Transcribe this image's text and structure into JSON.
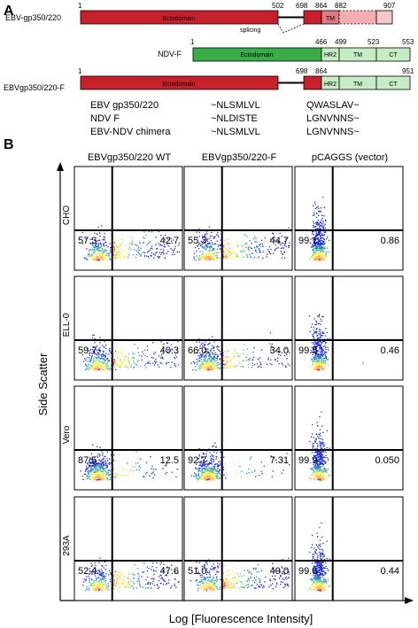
{
  "panel_a": {
    "letter": "A",
    "constructs": [
      {
        "name": "EBV-gp350/220",
        "numbers": [
          "1",
          "502",
          "698",
          "864",
          "882",
          "907"
        ],
        "domains": {
          "ecto": "Ectodomain",
          "tm": "TM"
        },
        "splicing_label": "splicing"
      },
      {
        "name": "NDV-F",
        "numbers": [
          "1",
          "466",
          "499",
          "523",
          "553"
        ],
        "domains": {
          "ecto": "Ectodomain",
          "hr2": "HR2",
          "tm": "TM",
          "ct": "CT"
        }
      },
      {
        "name": "EBVgp350/220-F",
        "numbers": [
          "1",
          "698",
          "864",
          "951"
        ],
        "domains": {
          "ecto": "Ectodomain",
          "hr2": "HR2",
          "tm": "TM",
          "ct": "CT"
        }
      }
    ],
    "sequences": [
      {
        "name": "EBV gp350/220",
        "seq1": "~NLSMLVL",
        "seq2": "QWASLAV~"
      },
      {
        "name": "NDV F",
        "seq1": "~NLDISTE",
        "seq2": "LGNVNNS~"
      },
      {
        "name": "EBV-NDV chimera",
        "seq1": "~NLSMLVL",
        "seq2": "LGNVNNS~"
      }
    ]
  },
  "panel_b": {
    "letter": "B",
    "columns": [
      "EBVgp350/220 WT",
      "EBVgp350/220-F",
      "pCAGGS (vector)"
    ],
    "rows": [
      "CHO",
      "ELL-0",
      "Vero",
      "293A"
    ],
    "y_axis_label": "Side Scatter",
    "x_axis_label": "Log [Fluorescence Intensity]",
    "values": [
      [
        [
          "57.3",
          "42.7"
        ],
        [
          "55.3",
          "44.7"
        ],
        [
          "99.1",
          "0.86"
        ]
      ],
      [
        [
          "59.7",
          "40.3"
        ],
        [
          "66.0",
          "34.0"
        ],
        [
          "99.5",
          "0.46"
        ]
      ],
      [
        [
          "87.5",
          "12.5"
        ],
        [
          "92.7",
          "7.31"
        ],
        [
          "99.9",
          "0.050"
        ]
      ],
      [
        [
          "52.4",
          "47.6"
        ],
        [
          "51.0",
          "49.0"
        ],
        [
          "99.6",
          "0.44"
        ]
      ]
    ]
  },
  "colors": {
    "gp_ecto": "#c8202a",
    "gp_tm": "#e07a80",
    "gp_ct": "#f6c9cc",
    "ndv_ecto": "#3aac4a",
    "ndv_light": "#c5ecc5"
  }
}
